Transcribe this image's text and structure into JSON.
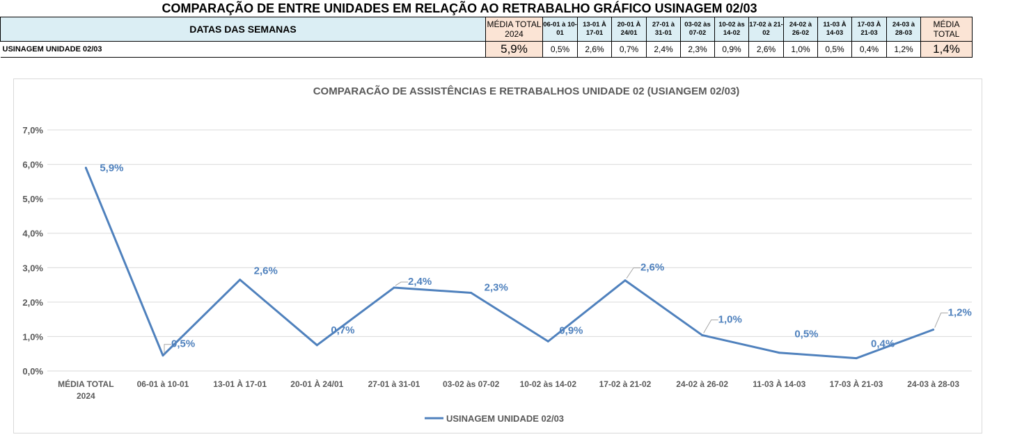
{
  "sheet_title": "COMPARAÇÃO DE ENTRE UNIDADES EM RELAÇÃO AO RETRABALHO GRÁFICO USINAGEM 02/03",
  "table": {
    "header_label": "DATAS DAS SEMANAS",
    "avg2024_header": "MÉDIA TOTAL 2024",
    "weeks": [
      "06-01 à 10-01",
      "13-01 À 17-01",
      "20-01 À 24/01",
      "27-01 à 31-01",
      "03-02 às 07-02",
      "10-02 às 14-02",
      "17-02 à 21-02",
      "24-02 à 26-02",
      "11-03 À 14-03",
      "17-03 À 21-03",
      "24-03 à 28-03"
    ],
    "avg_total_header": "MÉDIA TOTAL",
    "row_label": "USINAGEM UNIDADE 02/03",
    "avg2024_value": "5,9%",
    "week_values": [
      "0,5%",
      "2,6%",
      "0,7%",
      "2,4%",
      "2,3%",
      "0,9%",
      "2,6%",
      "1,0%",
      "0,5%",
      "0,4%",
      "1,2%"
    ],
    "avg_total_value": "1,4%",
    "colors": {
      "header_fill": "#dbeef4",
      "avg_fill": "#fbe4d5"
    }
  },
  "chart_data": {
    "type": "line",
    "title": "COMPARACÃO DE ASSISTÊNCIAS E RETRABALHOS UNIDADE 02  (USIANGEM 02/03)",
    "categories": [
      "MÉDIA TOTAL 2024",
      "06-01 à 10-01",
      "13-01 À 17-01",
      "20-01 À 24/01",
      "27-01 à 31-01",
      "03-02 às 07-02",
      "10-02 às 14-02",
      "17-02 à 21-02",
      "24-02 à 26-02",
      "11-03 À 14-03",
      "17-03 À 21-03",
      "24-03 à 28-03"
    ],
    "series": [
      {
        "name": "USINAGEM UNIDADE 02/03",
        "values": [
          5.9,
          0.45,
          2.65,
          0.75,
          2.42,
          2.27,
          0.86,
          2.63,
          1.04,
          0.53,
          0.37,
          1.2
        ],
        "labels": [
          "5,9%",
          "0,5%",
          "2,6%",
          "0,7%",
          "2,4%",
          "2,3%",
          "0,9%",
          "2,6%",
          "1,0%",
          "0,5%",
          "0,4%",
          "1,2%"
        ],
        "color": "#4f81bd"
      }
    ],
    "y_ticks": [
      "0,0%",
      "1,0%",
      "2,0%",
      "3,0%",
      "4,0%",
      "5,0%",
      "6,0%",
      "7,0%"
    ],
    "ylim": [
      0,
      7
    ],
    "grid": true,
    "legend_position": "bottom"
  }
}
